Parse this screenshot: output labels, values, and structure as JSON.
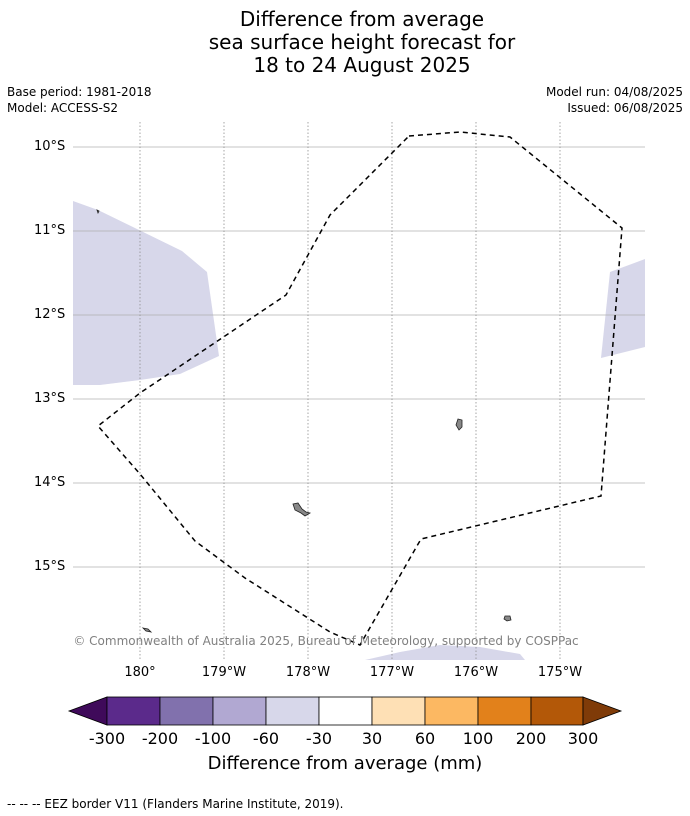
{
  "title": {
    "line1": "Difference from average",
    "line2": "sea surface height forecast for",
    "line3": "18 to 24 August 2025"
  },
  "meta": {
    "base_period": "Base period: 1981-2018",
    "model": "Model: ACCESS-S2",
    "model_run": "Model run: 04/08/2025",
    "issued": "Issued: 06/08/2025"
  },
  "map": {
    "lat_labels": [
      "10°S",
      "11°S",
      "12°S",
      "13°S",
      "14°S",
      "15°S"
    ],
    "lon_labels": [
      "180°",
      "179°W",
      "178°W",
      "177°W",
      "176°W",
      "175°W"
    ],
    "copyright": "© Commonwealth of Australia 2025, Bureau of Meteorology, supported by COSPPac",
    "anomaly_fill": "#d7d7ea",
    "eez_color": "#000000",
    "land_fill": "#888888"
  },
  "colorbar": {
    "labels": [
      "-300",
      "-200",
      "-100",
      "-60",
      "-30",
      "30",
      "60",
      "100",
      "200",
      "300"
    ],
    "colors": [
      "#3f0a5a",
      "#5b2a8b",
      "#8171ad",
      "#b1a8d2",
      "#d7d7ea",
      "#ffffff",
      "#fee0b5",
      "#fcb862",
      "#e2811b",
      "#b35808",
      "#7f3b08"
    ],
    "title": "Difference from average (mm)"
  },
  "footer": {
    "legend_text": "--  --  -- EEZ border V11 (Flanders Marine Institute, 2019)."
  }
}
